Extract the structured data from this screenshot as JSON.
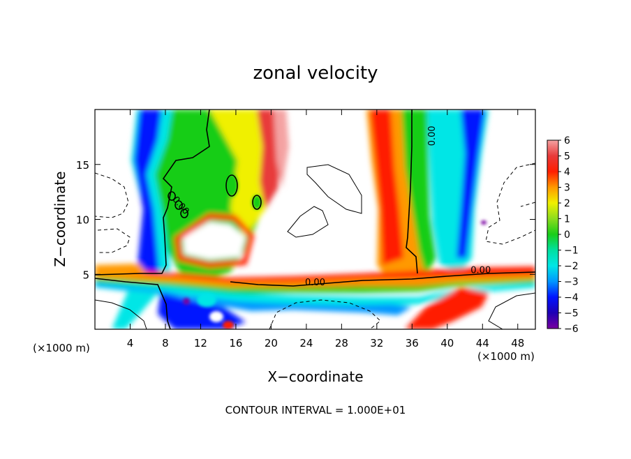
{
  "chart_data": {
    "type": "heatmap",
    "title": "zonal velocity",
    "xlabel": "X−coordinate",
    "ylabel": "Z−coordinate",
    "x_unit_label": "(×1000 m)",
    "x_unit_label_right": "(×1000 m)",
    "footnote": "CONTOUR INTERVAL = 1.000E+01",
    "xlim": [
      0,
      50
    ],
    "ylim": [
      0,
      20
    ],
    "x_ticks": [
      4,
      8,
      12,
      16,
      20,
      24,
      28,
      32,
      36,
      40,
      44,
      48
    ],
    "x_tick_labels": [
      "4",
      "8",
      "12",
      "16",
      "20",
      "24",
      "28",
      "32",
      "36",
      "40",
      "44",
      "48"
    ],
    "y_ticks": [
      5,
      10,
      15
    ],
    "y_tick_labels": [
      "5",
      "10",
      "15"
    ],
    "colorbar": {
      "min": -6,
      "max": 6,
      "ticks": [
        6,
        5,
        4,
        3,
        2,
        1,
        0,
        -1,
        -2,
        -3,
        -4,
        -5,
        -6
      ],
      "tick_labels": [
        "6",
        "5",
        "4",
        "3",
        "2",
        "1",
        "0",
        "−1",
        "−2",
        "−3",
        "−4",
        "−5",
        "−6"
      ],
      "colors": [
        "#f4a3a3",
        "#e83a3a",
        "#ff1e00",
        "#ff9900",
        "#f0f000",
        "#8cdc1e",
        "#19cd19",
        "#00e0a0",
        "#00e6e6",
        "#0096ff",
        "#0014ff",
        "#1e00b4",
        "#7800a0"
      ]
    },
    "contour_labels": [
      {
        "x": 38.6,
        "y": 17.6,
        "text": "0.00"
      },
      {
        "x": 25.0,
        "y": 4.0,
        "text": "0.00"
      },
      {
        "x": 43.8,
        "y": 5.1,
        "text": "0.00"
      },
      {
        "x": 9.5,
        "y": 11.1,
        "text": "0.00"
      }
    ],
    "description_values": {
      "negative_jets": [
        {
          "x_range": [
            4,
            10
          ],
          "z_range": [
            0,
            20
          ],
          "min": -6
        },
        {
          "x_range": [
            36,
            45
          ],
          "z_range": [
            5,
            20
          ],
          "min": -6
        }
      ],
      "positive_band": {
        "z_range": [
          3,
          6
        ],
        "max": 6
      }
    }
  }
}
